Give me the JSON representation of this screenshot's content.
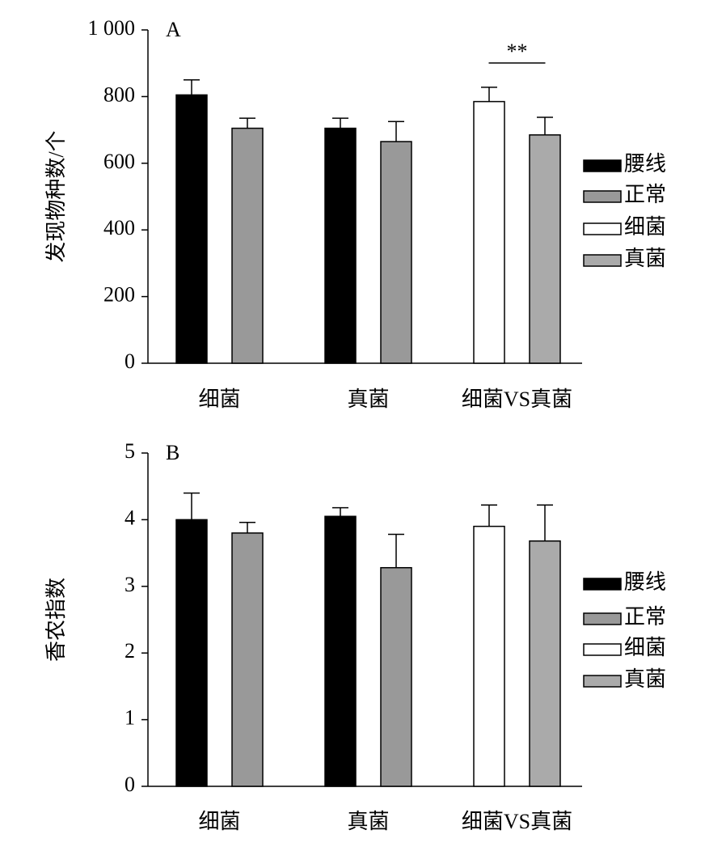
{
  "chart_data": [
    {
      "type": "bar",
      "panel_label": "A",
      "ylabel": "发现物种数/个",
      "categories": [
        "细菌",
        "真菌",
        "细菌VS真菌"
      ],
      "series": [
        {
          "name": "腰线",
          "color": "#000000",
          "values": [
            805,
            705,
            null
          ],
          "errors": [
            45,
            30,
            null
          ]
        },
        {
          "name": "正常",
          "color": "#999999",
          "values": [
            705,
            665,
            null
          ],
          "errors": [
            30,
            60,
            null
          ]
        },
        {
          "name": "细菌",
          "color": "#ffffff",
          "values": [
            null,
            null,
            785
          ],
          "errors": [
            null,
            null,
            43
          ]
        },
        {
          "name": "真菌",
          "color": "#aaaaaa",
          "values": [
            null,
            null,
            685
          ],
          "errors": [
            null,
            null,
            53
          ]
        }
      ],
      "ylim": [
        0,
        1000
      ],
      "yticks": [
        0,
        200,
        400,
        600,
        800,
        {
          "value": 1000,
          "label": "1 000"
        }
      ],
      "annotation": "**"
    },
    {
      "type": "bar",
      "panel_label": "B",
      "ylabel": "香农指数",
      "categories": [
        "细菌",
        "真菌",
        "细菌VS真菌"
      ],
      "series": [
        {
          "name": "腰线",
          "color": "#000000",
          "values": [
            4.0,
            4.05,
            null
          ],
          "errors": [
            0.4,
            0.13,
            null
          ]
        },
        {
          "name": "正常",
          "color": "#999999",
          "values": [
            3.8,
            3.28,
            null
          ],
          "errors": [
            0.16,
            0.5,
            null
          ]
        },
        {
          "name": "细菌",
          "color": "#ffffff",
          "values": [
            null,
            null,
            3.9
          ],
          "errors": [
            null,
            null,
            0.32
          ]
        },
        {
          "name": "真菌",
          "color": "#aaaaaa",
          "values": [
            null,
            null,
            3.68
          ],
          "errors": [
            null,
            null,
            0.54
          ]
        }
      ],
      "ylim": [
        0,
        5
      ],
      "yticks": [
        0,
        1,
        2,
        3,
        4,
        5
      ]
    }
  ]
}
